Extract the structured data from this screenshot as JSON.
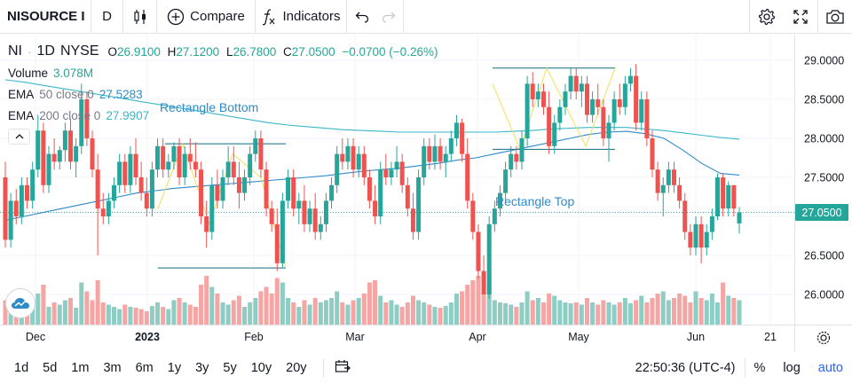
{
  "toolbar": {
    "symbol": "NISOURCE I",
    "interval": "D",
    "compare_label": "Compare",
    "indicators_label": "Indicators"
  },
  "legend": {
    "symbol": "NI",
    "interval": "1D",
    "exchange": "NYSE",
    "ohlc": {
      "o_label": "O",
      "o": "26.9100",
      "h_label": "H",
      "h": "27.1200",
      "l_label": "L",
      "l": "26.7800",
      "c_label": "C",
      "c": "27.0500",
      "change": "−0.0700 (−0.26%)"
    },
    "volume_label": "Volume",
    "volume_value": "3.078M",
    "ema50_label": "EMA",
    "ema50_params": "50 close 0",
    "ema50_value": "27.5283",
    "ema200_label": "EMA",
    "ema200_params": "200 close 0",
    "ema200_value": "27.9907"
  },
  "annotations": {
    "rect_bottom": "Rectangle Bottom",
    "rect_top": "Rectangle Top"
  },
  "price_tag": "27.0500",
  "bottombar": {
    "ranges": [
      "1d",
      "5d",
      "1m",
      "3m",
      "6m",
      "1y",
      "3y",
      "5y",
      "10y",
      "20y"
    ],
    "time": "22:50:36 (UTC-4)",
    "percent_label": "%",
    "log_label": "log",
    "auto_label": "auto"
  },
  "colors": {
    "up": "#26a69a",
    "down": "#ef5350",
    "vol_up": "#8ecdc4",
    "vol_down": "#f5a5a3",
    "ema50": "#2e8bc9",
    "ema200": "#3bb6c7",
    "zigzag": "#f0e05a",
    "rect_line": "#0b6e7f"
  },
  "chart_data": {
    "type": "candlestick",
    "y_ticks": [
      "29.0000",
      "28.5000",
      "28.0000",
      "27.5000",
      "27.0000",
      "26.5000",
      "26.0000"
    ],
    "ylim": [
      25.65,
      29.15
    ],
    "x_ticks": [
      "Dec",
      "2023",
      "Feb",
      "Mar",
      "Apr",
      "May",
      "Jun",
      "21"
    ],
    "candles": [
      [
        27.5,
        27.7,
        26.6,
        26.7
      ],
      [
        26.7,
        27.3,
        26.6,
        27.2
      ],
      [
        27.2,
        27.35,
        26.9,
        27.0
      ],
      [
        27.0,
        27.5,
        26.9,
        27.4
      ],
      [
        27.4,
        27.5,
        27.1,
        27.2
      ],
      [
        27.2,
        27.7,
        27.1,
        27.6
      ],
      [
        27.6,
        28.3,
        27.5,
        28.1
      ],
      [
        28.1,
        28.2,
        27.3,
        27.4
      ],
      [
        27.4,
        27.9,
        27.3,
        27.8
      ],
      [
        27.8,
        28.0,
        27.6,
        27.7
      ],
      [
        27.7,
        27.9,
        27.6,
        27.85
      ],
      [
        27.85,
        28.2,
        27.7,
        28.1
      ],
      [
        28.1,
        28.25,
        27.6,
        27.7
      ],
      [
        27.7,
        28.0,
        27.5,
        27.9
      ],
      [
        27.9,
        28.7,
        27.8,
        28.5
      ],
      [
        28.5,
        28.6,
        27.9,
        28.0
      ],
      [
        28.0,
        28.1,
        27.5,
        27.6
      ],
      [
        27.6,
        27.8,
        26.5,
        27.1
      ],
      [
        27.1,
        27.3,
        26.9,
        27.0
      ],
      [
        27.0,
        27.3,
        26.9,
        27.2
      ],
      [
        27.2,
        27.5,
        27.1,
        27.4
      ],
      [
        27.4,
        27.8,
        27.3,
        27.7
      ],
      [
        27.7,
        27.8,
        27.3,
        27.4
      ],
      [
        27.4,
        27.9,
        27.3,
        27.8
      ],
      [
        27.8,
        28.0,
        27.4,
        27.5
      ],
      [
        27.5,
        27.7,
        27.2,
        27.3
      ],
      [
        27.3,
        27.5,
        27.0,
        27.1
      ],
      [
        27.1,
        27.7,
        27.0,
        27.6
      ],
      [
        27.6,
        28.0,
        27.5,
        27.9
      ],
      [
        27.9,
        28.0,
        27.5,
        27.6
      ],
      [
        27.6,
        27.8,
        27.5,
        27.7
      ],
      [
        27.7,
        27.95,
        27.6,
        27.9
      ],
      [
        27.9,
        28.0,
        27.4,
        27.5
      ],
      [
        27.5,
        27.9,
        27.4,
        27.8
      ],
      [
        27.8,
        28.0,
        27.6,
        27.7
      ],
      [
        27.7,
        27.95,
        27.5,
        27.6
      ],
      [
        27.6,
        27.7,
        26.9,
        27.0
      ],
      [
        27.0,
        27.2,
        26.6,
        26.8
      ],
      [
        26.8,
        27.5,
        26.7,
        27.4
      ],
      [
        27.4,
        27.6,
        27.1,
        27.2
      ],
      [
        27.2,
        27.6,
        27.1,
        27.5
      ],
      [
        27.5,
        27.9,
        27.4,
        27.7
      ],
      [
        27.7,
        27.9,
        27.4,
        27.5
      ],
      [
        27.5,
        27.7,
        27.1,
        27.3
      ],
      [
        27.3,
        27.6,
        27.2,
        27.5
      ],
      [
        27.5,
        27.9,
        27.4,
        27.8
      ],
      [
        27.8,
        28.1,
        27.7,
        28.0
      ],
      [
        28.0,
        28.1,
        27.5,
        27.6
      ],
      [
        27.6,
        27.7,
        27.0,
        27.1
      ],
      [
        27.1,
        27.2,
        26.8,
        26.9
      ],
      [
        26.9,
        27.1,
        26.3,
        26.4
      ],
      [
        26.4,
        27.3,
        26.35,
        27.2
      ],
      [
        27.2,
        27.6,
        27.1,
        27.5
      ],
      [
        27.5,
        27.6,
        27.0,
        27.1
      ],
      [
        27.1,
        27.3,
        26.9,
        27.2
      ],
      [
        27.2,
        27.4,
        26.8,
        26.9
      ],
      [
        26.9,
        27.2,
        26.8,
        27.1
      ],
      [
        27.1,
        27.3,
        26.7,
        26.8
      ],
      [
        26.8,
        27.0,
        26.7,
        26.9
      ],
      [
        26.9,
        27.3,
        26.8,
        27.2
      ],
      [
        27.2,
        27.5,
        27.1,
        27.4
      ],
      [
        27.4,
        27.9,
        27.3,
        27.8
      ],
      [
        27.8,
        28.0,
        27.6,
        27.7
      ],
      [
        27.7,
        28.0,
        27.6,
        27.9
      ],
      [
        27.9,
        28.0,
        27.5,
        27.6
      ],
      [
        27.6,
        27.9,
        27.5,
        27.8
      ],
      [
        27.8,
        27.9,
        27.4,
        27.5
      ],
      [
        27.5,
        27.6,
        27.1,
        27.2
      ],
      [
        27.2,
        27.4,
        26.9,
        27.0
      ],
      [
        27.0,
        27.7,
        26.9,
        27.6
      ],
      [
        27.6,
        27.8,
        27.4,
        27.5
      ],
      [
        27.5,
        27.7,
        27.4,
        27.6
      ],
      [
        27.6,
        27.9,
        27.5,
        27.7
      ],
      [
        27.7,
        27.8,
        27.3,
        27.4
      ],
      [
        27.4,
        27.5,
        27.0,
        27.1
      ],
      [
        27.1,
        27.3,
        26.7,
        26.8
      ],
      [
        26.8,
        27.6,
        26.7,
        27.5
      ],
      [
        27.5,
        28.0,
        27.4,
        27.9
      ],
      [
        27.9,
        28.0,
        27.6,
        27.7
      ],
      [
        27.7,
        28.05,
        27.6,
        27.9
      ],
      [
        27.9,
        28.0,
        27.6,
        27.7
      ],
      [
        27.7,
        27.9,
        27.5,
        27.8
      ],
      [
        27.8,
        28.1,
        27.7,
        28.0
      ],
      [
        28.0,
        28.3,
        27.9,
        28.2
      ],
      [
        28.2,
        28.25,
        27.7,
        27.8
      ],
      [
        27.8,
        28.0,
        27.1,
        27.2
      ],
      [
        27.2,
        27.3,
        26.7,
        26.8
      ],
      [
        26.8,
        26.9,
        26.2,
        26.3
      ],
      [
        26.3,
        26.5,
        26.0,
        26.0
      ],
      [
        26.0,
        27.0,
        25.95,
        26.9
      ],
      [
        26.9,
        27.2,
        26.8,
        27.1
      ],
      [
        27.1,
        27.4,
        27.0,
        27.3
      ],
      [
        27.3,
        27.7,
        27.2,
        27.6
      ],
      [
        27.6,
        27.9,
        27.5,
        27.8
      ],
      [
        27.8,
        27.9,
        27.6,
        27.7
      ],
      [
        27.7,
        28.1,
        27.6,
        28.0
      ],
      [
        28.0,
        28.8,
        27.9,
        28.7
      ],
      [
        28.7,
        28.85,
        28.4,
        28.5
      ],
      [
        28.5,
        28.7,
        28.4,
        28.6
      ],
      [
        28.6,
        28.7,
        28.3,
        28.4
      ],
      [
        28.4,
        28.6,
        27.8,
        27.9
      ],
      [
        27.9,
        28.3,
        27.8,
        28.2
      ],
      [
        28.2,
        28.5,
        28.1,
        28.4
      ],
      [
        28.4,
        28.7,
        28.3,
        28.6
      ],
      [
        28.6,
        28.9,
        28.5,
        28.8
      ],
      [
        28.8,
        28.9,
        28.5,
        28.6
      ],
      [
        28.6,
        28.8,
        28.4,
        28.7
      ],
      [
        28.7,
        28.8,
        28.2,
        28.3
      ],
      [
        28.3,
        28.6,
        28.2,
        28.5
      ],
      [
        28.5,
        28.7,
        28.3,
        28.4
      ],
      [
        28.4,
        28.5,
        27.9,
        28.0
      ],
      [
        28.0,
        28.3,
        27.7,
        28.2
      ],
      [
        28.2,
        28.6,
        28.1,
        28.5
      ],
      [
        28.5,
        28.7,
        28.3,
        28.4
      ],
      [
        28.4,
        28.8,
        28.3,
        28.7
      ],
      [
        28.7,
        28.9,
        28.6,
        28.8
      ],
      [
        28.8,
        28.95,
        28.1,
        28.2
      ],
      [
        28.2,
        28.6,
        28.1,
        28.5
      ],
      [
        28.5,
        28.6,
        27.9,
        28.0
      ],
      [
        28.0,
        28.1,
        27.5,
        27.6
      ],
      [
        27.6,
        27.7,
        27.2,
        27.3
      ],
      [
        27.3,
        27.5,
        27.0,
        27.4
      ],
      [
        27.4,
        27.7,
        27.3,
        27.6
      ],
      [
        27.6,
        27.7,
        27.3,
        27.4
      ],
      [
        27.4,
        27.5,
        27.1,
        27.2
      ],
      [
        27.2,
        27.3,
        26.7,
        26.8
      ],
      [
        26.8,
        26.9,
        26.5,
        26.6
      ],
      [
        26.6,
        27.0,
        26.5,
        26.9
      ],
      [
        26.9,
        27.0,
        26.4,
        26.6
      ],
      [
        26.6,
        26.9,
        26.5,
        26.8
      ],
      [
        26.8,
        27.1,
        26.7,
        27.0
      ],
      [
        27.0,
        27.55,
        26.95,
        27.5
      ],
      [
        27.5,
        27.55,
        27.0,
        27.1
      ],
      [
        27.1,
        27.45,
        27.0,
        27.4
      ],
      [
        27.4,
        27.4,
        27.0,
        27.1
      ],
      [
        26.91,
        27.12,
        26.78,
        27.05
      ]
    ],
    "volume": [
      0.55,
      0.45,
      0.5,
      0.6,
      0.35,
      0.42,
      0.7,
      0.9,
      0.4,
      0.5,
      0.45,
      0.55,
      0.6,
      0.38,
      0.95,
      0.75,
      0.55,
      1.0,
      0.5,
      0.45,
      0.4,
      0.35,
      0.45,
      0.4,
      0.38,
      0.35,
      0.3,
      0.42,
      0.5,
      0.4,
      0.35,
      0.55,
      0.6,
      0.5,
      0.45,
      0.4,
      0.9,
      1.1,
      0.85,
      0.7,
      0.5,
      0.45,
      0.55,
      0.65,
      0.4,
      0.5,
      0.6,
      0.75,
      0.85,
      0.7,
      1.05,
      0.95,
      0.6,
      0.5,
      0.4,
      0.55,
      0.45,
      0.6,
      0.5,
      0.55,
      0.6,
      0.75,
      0.5,
      0.45,
      0.55,
      0.6,
      0.7,
      0.95,
      1.0,
      0.65,
      0.5,
      0.55,
      0.45,
      0.4,
      0.5,
      0.65,
      0.55,
      0.5,
      0.45,
      0.4,
      0.38,
      0.42,
      0.5,
      0.7,
      0.75,
      0.9,
      1.0,
      1.1,
      1.2,
      0.95,
      0.55,
      0.5,
      0.48,
      0.45,
      0.4,
      0.5,
      0.75,
      0.55,
      0.6,
      0.5,
      0.7,
      0.65,
      0.55,
      0.5,
      0.48,
      0.5,
      0.45,
      0.6,
      0.5,
      0.45,
      0.55,
      0.5,
      0.45,
      0.5,
      0.6,
      0.48,
      0.55,
      0.65,
      0.5,
      0.6,
      0.7,
      0.75,
      0.55,
      0.6,
      0.7,
      0.65,
      0.5,
      0.75,
      0.6,
      0.55,
      0.7,
      0.5,
      0.95,
      0.65,
      0.6,
      0.55,
      0.45,
      0.5,
      0.5,
      0.45,
      0.5
    ],
    "ema50": [
      26.95,
      27.0,
      27.05,
      27.1,
      27.15,
      27.2,
      27.25,
      27.3,
      27.33,
      27.36,
      27.38,
      27.4,
      27.42,
      27.44,
      27.46,
      27.48,
      27.5,
      27.52,
      27.55,
      27.58,
      27.6,
      27.62,
      27.65,
      27.68,
      27.72,
      27.75,
      27.8,
      27.85,
      27.9,
      27.95,
      28.0,
      28.05,
      28.08,
      28.09,
      28.06,
      28.0,
      27.85,
      27.68,
      27.55,
      27.53
    ],
    "ema200": [
      28.75,
      28.72,
      28.68,
      28.64,
      28.6,
      28.56,
      28.52,
      28.48,
      28.44,
      28.4,
      28.36,
      28.32,
      28.28,
      28.24,
      28.2,
      28.17,
      28.15,
      28.13,
      28.11,
      28.1,
      28.09,
      28.08,
      28.08,
      28.08,
      28.08,
      28.08,
      28.08,
      28.09,
      28.1,
      28.12,
      28.13,
      28.14,
      28.14,
      28.14,
      28.12,
      28.1,
      28.07,
      28.04,
      28.01,
      27.99
    ]
  }
}
